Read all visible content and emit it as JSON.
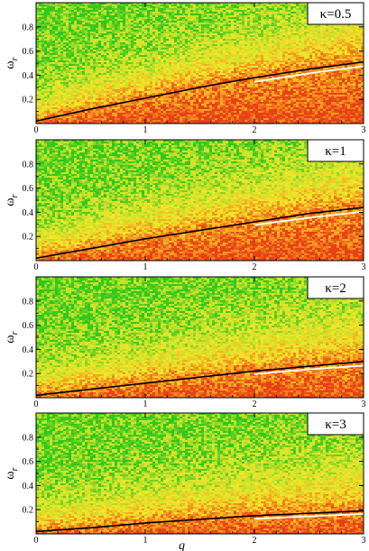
{
  "chart_data": [
    {
      "type": "heatmap",
      "panel_label": "κ=0.5",
      "xlabel": "",
      "ylabel": "ω_r",
      "xlim": [
        0,
        3
      ],
      "ylim": [
        0,
        1
      ],
      "x_ticks": [
        "0",
        "1",
        "2",
        "3"
      ],
      "y_ticks": [
        "0.2",
        "0.4",
        "0.6",
        "0.8"
      ],
      "colormap": [
        "#2ec81e",
        "#c8e02a",
        "#f2e82a",
        "#f59a1e",
        "#e84016"
      ],
      "curves": [
        {
          "color": "#000000",
          "x": [
            0,
            0.5,
            1,
            1.5,
            2,
            2.5,
            3
          ],
          "y": [
            0.02,
            0.12,
            0.21,
            0.3,
            0.38,
            0.45,
            0.51
          ]
        },
        {
          "color": "#ffffff",
          "x": [
            2,
            2.5,
            3
          ],
          "y": [
            0.36,
            0.43,
            0.49
          ]
        }
      ]
    },
    {
      "type": "heatmap",
      "panel_label": "κ=1",
      "xlabel": "",
      "ylabel": "ω_r",
      "xlim": [
        0,
        3
      ],
      "ylim": [
        0,
        1
      ],
      "x_ticks": [
        "0",
        "1",
        "2",
        "3"
      ],
      "y_ticks": [
        "0.2",
        "0.4",
        "0.6",
        "0.8"
      ],
      "colormap": [
        "#2ec81e",
        "#c8e02a",
        "#f2e82a",
        "#f59a1e",
        "#e84016"
      ],
      "curves": [
        {
          "color": "#000000",
          "x": [
            0,
            0.5,
            1,
            1.5,
            2,
            2.5,
            3
          ],
          "y": [
            0.02,
            0.1,
            0.18,
            0.25,
            0.32,
            0.39,
            0.44
          ]
        },
        {
          "color": "#ffffff",
          "x": [
            2,
            2.5,
            3
          ],
          "y": [
            0.31,
            0.37,
            0.42
          ]
        }
      ]
    },
    {
      "type": "heatmap",
      "panel_label": "κ=2",
      "xlabel": "",
      "ylabel": "ω_r",
      "xlim": [
        0,
        3
      ],
      "ylim": [
        0,
        1
      ],
      "x_ticks": [
        "0",
        "1",
        "2",
        "3"
      ],
      "y_ticks": [
        "0.2",
        "0.4",
        "0.6",
        "0.8"
      ],
      "colormap": [
        "#2ec81e",
        "#c8e02a",
        "#f2e82a",
        "#f59a1e",
        "#e84016"
      ],
      "curves": [
        {
          "color": "#000000",
          "x": [
            0,
            0.5,
            1,
            1.5,
            2,
            2.5,
            3
          ],
          "y": [
            0.02,
            0.07,
            0.12,
            0.17,
            0.22,
            0.26,
            0.3
          ]
        },
        {
          "color": "#ffffff",
          "x": [
            2,
            2.5,
            3
          ],
          "y": [
            0.21,
            0.25,
            0.28
          ]
        }
      ]
    },
    {
      "type": "heatmap",
      "panel_label": "κ=3",
      "xlabel": "q",
      "ylabel": "ω_r",
      "xlim": [
        0,
        3
      ],
      "ylim": [
        0,
        1
      ],
      "x_ticks": [
        "0",
        "1",
        "2",
        "3"
      ],
      "y_ticks": [
        "0.2",
        "0.4",
        "0.6",
        "0.8"
      ],
      "colormap": [
        "#2ec81e",
        "#c8e02a",
        "#f2e82a",
        "#f59a1e",
        "#e84016"
      ],
      "curves": [
        {
          "color": "#000000",
          "x": [
            0,
            0.5,
            1,
            1.5,
            2,
            2.5,
            3
          ],
          "y": [
            0.02,
            0.05,
            0.09,
            0.12,
            0.15,
            0.17,
            0.19
          ]
        },
        {
          "color": "#ffffff",
          "x": [
            2,
            2.5,
            3
          ],
          "y": [
            0.14,
            0.16,
            0.18
          ]
        }
      ]
    }
  ]
}
